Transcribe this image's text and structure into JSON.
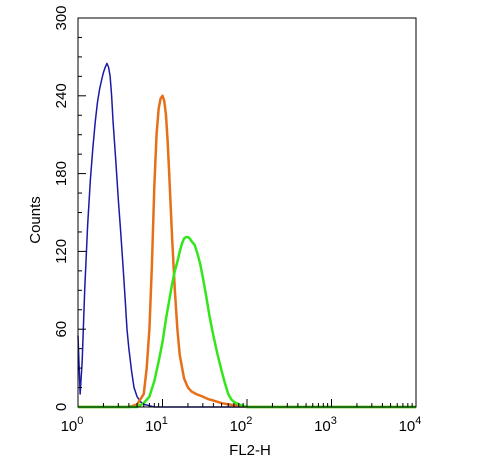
{
  "chart_data": {
    "type": "line",
    "title": "",
    "xlabel": "FL2-H",
    "ylabel": "Counts",
    "x_scale": "log",
    "xlim": [
      1,
      10000
    ],
    "ylim": [
      0,
      300
    ],
    "grid": false,
    "legend": "none",
    "x_ticks": [
      {
        "base": "10",
        "exp": "0",
        "value": 1
      },
      {
        "base": "10",
        "exp": "1",
        "value": 10
      },
      {
        "base": "10",
        "exp": "2",
        "value": 100
      },
      {
        "base": "10",
        "exp": "3",
        "value": 1000
      },
      {
        "base": "10",
        "exp": "4",
        "value": 10000
      }
    ],
    "y_ticks": [
      "0",
      "60",
      "120",
      "180",
      "240",
      "300"
    ],
    "series": [
      {
        "color": "#1a1aa6",
        "x": [
          1.0,
          1.06,
          1.12,
          1.2,
          1.3,
          1.4,
          1.5,
          1.6,
          1.7,
          1.8,
          1.9,
          2.0,
          2.1,
          2.2,
          2.3,
          2.4,
          2.5,
          2.6,
          2.8,
          3.0,
          3.2,
          3.4,
          3.6,
          3.8,
          4.0,
          4.3,
          4.6,
          5.0,
          5.5,
          6.0,
          7.0,
          8.0,
          10.0,
          10000
        ],
        "y": [
          55,
          10,
          35,
          90,
          140,
          175,
          200,
          220,
          235,
          245,
          252,
          258,
          262,
          265,
          262,
          255,
          240,
          220,
          190,
          160,
          135,
          110,
          85,
          60,
          45,
          28,
          15,
          8,
          4,
          2,
          1,
          0,
          0,
          0
        ]
      },
      {
        "color": "#e6701a",
        "x": [
          1.0,
          4.0,
          5.0,
          6.0,
          6.5,
          7.0,
          7.5,
          8.0,
          8.5,
          9.0,
          9.5,
          10.0,
          10.5,
          11.0,
          11.5,
          12.0,
          13.0,
          14.0,
          15.0,
          16.0,
          18.0,
          20.0,
          22.0,
          25.0,
          30.0,
          35.0,
          40.0,
          50.0,
          60.0,
          80.0,
          100.0,
          10000
        ],
        "y": [
          0,
          0,
          2,
          10,
          30,
          60,
          110,
          170,
          210,
          230,
          238,
          240,
          236,
          225,
          205,
          180,
          130,
          90,
          60,
          40,
          22,
          15,
          12,
          10,
          8,
          6,
          5,
          3,
          2,
          1,
          0,
          0
        ]
      },
      {
        "color": "#33e61a",
        "x": [
          1.0,
          5.0,
          6.0,
          7.0,
          8.0,
          9.0,
          10.0,
          11.0,
          12.0,
          13.0,
          14.0,
          15.0,
          16.0,
          17.0,
          18.0,
          19.0,
          20.0,
          21.0,
          22.0,
          24.0,
          26.0,
          28.0,
          30.0,
          33.0,
          36.0,
          40.0,
          45.0,
          50.0,
          55.0,
          60.0,
          65.0,
          70.0,
          80.0,
          90.0,
          100.0,
          120.0,
          10000
        ],
        "y": [
          0,
          0,
          3,
          8,
          20,
          35,
          50,
          68,
          82,
          95,
          105,
          112,
          120,
          126,
          130,
          131,
          131,
          130,
          128,
          125,
          118,
          110,
          100,
          85,
          70,
          55,
          40,
          28,
          18,
          10,
          6,
          4,
          2,
          1,
          0,
          0,
          0
        ]
      }
    ]
  }
}
